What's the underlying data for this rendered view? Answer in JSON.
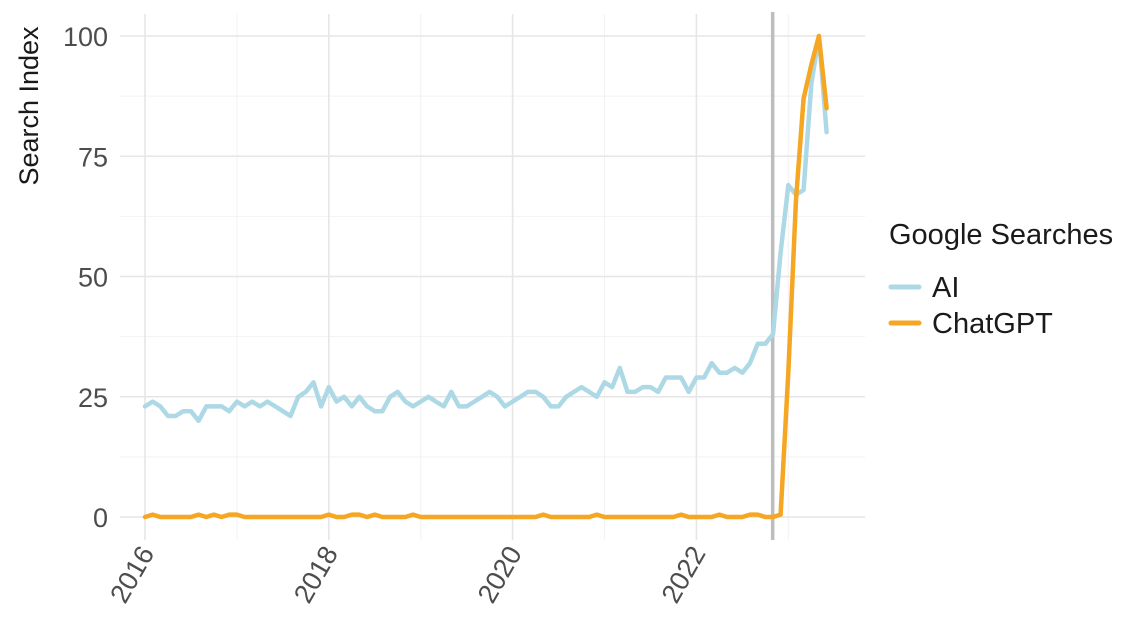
{
  "chart_data": {
    "type": "line",
    "title": "",
    "xlabel": "",
    "ylabel": "Search Index",
    "xlim": [
      2016.0,
      2023.85
    ],
    "ylim": [
      -5,
      103
    ],
    "x_ticks": [
      2016,
      2018,
      2020,
      2022
    ],
    "x_tick_labels": [
      "2016",
      "2018",
      "2020",
      "2022"
    ],
    "y_ticks": [
      0,
      25,
      50,
      75,
      100
    ],
    "y_tick_labels": [
      "0",
      "25",
      "50",
      "75",
      "100"
    ],
    "grid": true,
    "vline_x": 2022.83,
    "vline_color": "#bdbdbd",
    "legend": {
      "title": "Google Searches",
      "position": "right"
    },
    "series": [
      {
        "name": "AI",
        "color": "#add8e6",
        "start": 2016.0,
        "step_months": 1,
        "values": [
          23,
          24,
          23,
          21,
          21,
          22,
          22,
          20,
          23,
          23,
          23,
          22,
          24,
          23,
          24,
          23,
          24,
          23,
          22,
          21,
          25,
          26,
          28,
          23,
          27,
          24,
          25,
          23,
          25,
          23,
          22,
          22,
          25,
          26,
          24,
          23,
          24,
          25,
          24,
          23,
          26,
          23,
          23,
          24,
          25,
          26,
          25,
          23,
          24,
          25,
          26,
          26,
          25,
          23,
          23,
          25,
          26,
          27,
          26,
          25,
          28,
          27,
          31,
          26,
          26,
          27,
          27,
          26,
          29,
          29,
          29,
          26,
          29,
          29,
          32,
          30,
          30,
          31,
          30,
          32,
          36,
          36,
          38,
          55,
          69,
          67,
          68,
          90,
          100,
          80
        ]
      },
      {
        "name": "ChatGPT",
        "color": "#f5a623",
        "start": 2016.0,
        "step_months": 1,
        "values": [
          0,
          0.5,
          0,
          0,
          0,
          0,
          0,
          0.5,
          0,
          0.5,
          0,
          0.5,
          0.5,
          0,
          0,
          0,
          0,
          0,
          0,
          0,
          0,
          0,
          0,
          0,
          0.5,
          0,
          0,
          0.5,
          0.5,
          0,
          0.5,
          0,
          0,
          0,
          0,
          0.5,
          0,
          0,
          0,
          0,
          0,
          0,
          0,
          0,
          0,
          0,
          0,
          0,
          0,
          0,
          0,
          0,
          0.5,
          0,
          0,
          0,
          0,
          0,
          0,
          0.5,
          0,
          0,
          0,
          0,
          0,
          0,
          0,
          0,
          0,
          0,
          0.5,
          0,
          0,
          0,
          0,
          0.5,
          0,
          0,
          0,
          0.5,
          0.5,
          0,
          0,
          0.5,
          30,
          66,
          87,
          94,
          100,
          85
        ]
      }
    ]
  }
}
